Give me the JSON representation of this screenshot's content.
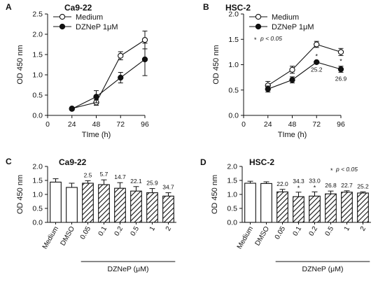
{
  "colors": {
    "ink": "#111111",
    "open_marker": "#ffffff",
    "bar_fill": "#ffffff",
    "hatch": "#111111"
  },
  "chart_data": [
    {
      "panel": "A",
      "type": "line",
      "title": "Ca9-22",
      "xlabel": "TIme (h)",
      "ylabel": "OD 450 nm",
      "xlim": [
        0,
        96
      ],
      "ylim": [
        0,
        2.5
      ],
      "xticks": [
        "0",
        "24",
        "48",
        "72",
        "96"
      ],
      "yticks": [
        "0.0",
        "0.5",
        "1.0",
        "1.5",
        "2.0",
        "2.5"
      ],
      "legend_position": "top-left",
      "series": [
        {
          "name": "Medium",
          "marker": "open-circle",
          "x": [
            24,
            48,
            72,
            96
          ],
          "values": [
            0.17,
            0.32,
            1.47,
            1.86
          ],
          "errors": [
            0.03,
            0.07,
            0.1,
            0.22
          ]
        },
        {
          "name": "DZNeP 1μM",
          "marker": "filled-circle",
          "x": [
            24,
            48,
            72,
            96
          ],
          "values": [
            0.16,
            0.46,
            0.93,
            1.38
          ],
          "errors": [
            0.03,
            0.15,
            0.13,
            0.4
          ]
        }
      ],
      "annotations": []
    },
    {
      "panel": "B",
      "type": "line",
      "title": "HSC-2",
      "xlabel": "TIme (h)",
      "ylabel": "OD 450 nm",
      "xlim": [
        0,
        96
      ],
      "ylim": [
        0,
        2.0
      ],
      "xticks": [
        "0",
        "24",
        "48",
        "72",
        "96"
      ],
      "yticks": [
        "0.0",
        "0.5",
        "1.0",
        "1.5",
        "2.0"
      ],
      "legend_position": "top-left",
      "significance_note": "p < 0.05",
      "series": [
        {
          "name": "Medium",
          "marker": "open-circle",
          "x": [
            24,
            48,
            72,
            96
          ],
          "values": [
            0.59,
            0.9,
            1.4,
            1.25
          ],
          "errors": [
            0.08,
            0.07,
            0.06,
            0.07
          ]
        },
        {
          "name": "DZNeP 1μM",
          "marker": "filled-circle",
          "x": [
            24,
            48,
            72,
            96
          ],
          "values": [
            0.52,
            0.7,
            1.05,
            0.91
          ],
          "errors": [
            0.06,
            0.06,
            0.02,
            0.06
          ]
        }
      ],
      "annotations": [
        {
          "x": 72,
          "text": "25.2",
          "star": true
        },
        {
          "x": 96,
          "text": "26.9",
          "star": true
        }
      ]
    },
    {
      "panel": "C",
      "type": "bar",
      "title": "Ca9-22",
      "ylabel": "OD 450 nm",
      "group_label": "DZNeP (μM)",
      "ylim": [
        0,
        2.0
      ],
      "yticks": [
        "0.0",
        "0.5",
        "1.0",
        "1.5",
        "2.0"
      ],
      "categories": [
        "Medium",
        "DMSO",
        "0.05",
        "0.1",
        "0.2",
        "0.5",
        "1",
        "2"
      ],
      "values": [
        1.44,
        1.25,
        1.4,
        1.35,
        1.22,
        1.12,
        1.06,
        0.94
      ],
      "errors": [
        0.12,
        0.15,
        0.09,
        0.17,
        0.2,
        0.16,
        0.15,
        0.12
      ],
      "hatched": [
        false,
        false,
        true,
        true,
        true,
        true,
        true,
        true
      ],
      "labels": [
        "",
        "",
        "2.5",
        "5.7",
        "14.7",
        "22.1",
        "25.9",
        "34.7"
      ],
      "stars": [
        false,
        false,
        false,
        false,
        false,
        false,
        false,
        false
      ]
    },
    {
      "panel": "D",
      "type": "bar",
      "title": "HSC-2",
      "ylabel": "OD 450 nm",
      "group_label": "DZNeP (μM)",
      "significance_note": "p < 0.05",
      "ylim": [
        0,
        2.0
      ],
      "yticks": [
        "0.0",
        "0.5",
        "1.0",
        "1.5",
        "2.0"
      ],
      "categories": [
        "Medium",
        "DMSO",
        "0.05",
        "0.1",
        "0.2",
        "0.5",
        "1",
        "2"
      ],
      "values": [
        1.4,
        1.39,
        1.09,
        0.92,
        0.94,
        1.02,
        1.08,
        1.05
      ],
      "errors": [
        0.07,
        0.06,
        0.09,
        0.16,
        0.15,
        0.1,
        0.05,
        0.04
      ],
      "hatched": [
        false,
        false,
        true,
        true,
        true,
        true,
        true,
        true
      ],
      "labels": [
        "",
        "",
        "22.0",
        "34.3",
        "33.0",
        "26.8",
        "22.7",
        "25.2"
      ],
      "stars": [
        false,
        false,
        false,
        true,
        true,
        false,
        false,
        false
      ]
    }
  ]
}
